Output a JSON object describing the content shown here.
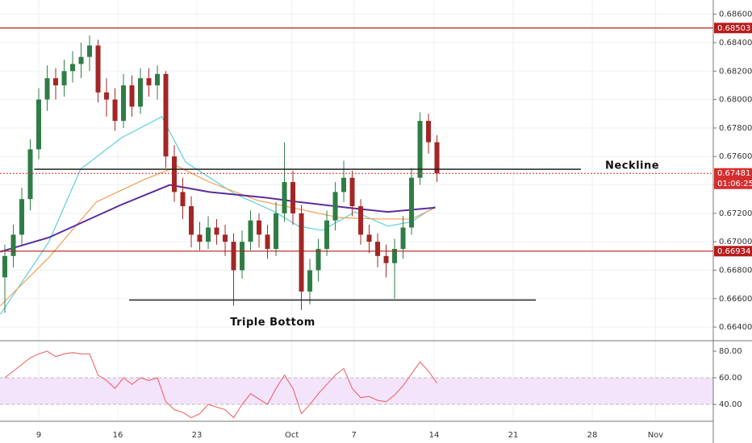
{
  "chart_data": [
    {
      "type": "candlestick",
      "x": [
        5,
        5.75,
        6.5,
        7.25,
        8,
        8.75,
        9.5,
        10.25,
        11,
        11.75,
        12.5,
        13.25,
        14,
        14.75,
        15.5,
        16.25,
        17,
        17.75,
        18.5,
        19.25,
        20,
        20.75,
        21.5,
        22.25,
        23,
        23.75,
        24.5,
        25.25,
        26,
        26.75,
        27.5,
        28.25,
        29,
        29.75,
        30.5,
        31.25,
        32,
        32.75,
        33.5,
        34.25,
        35,
        35.75,
        36.5,
        37.25,
        38,
        38.75,
        39.5,
        40.25,
        41,
        41.75,
        42.5,
        43.25
      ],
      "open": [
        0.6675,
        0.669,
        0.6705,
        0.673,
        0.6765,
        0.68,
        0.6815,
        0.681,
        0.682,
        0.6825,
        0.683,
        0.6838,
        0.6805,
        0.68,
        0.6785,
        0.681,
        0.6795,
        0.6815,
        0.681,
        0.6818,
        0.676,
        0.6735,
        0.6725,
        0.6705,
        0.67,
        0.671,
        0.6705,
        0.67,
        0.668,
        0.67,
        0.6715,
        0.6705,
        0.6695,
        0.672,
        0.6742,
        0.672,
        0.6665,
        0.668,
        0.6695,
        0.6715,
        0.6735,
        0.6745,
        0.6725,
        0.6705,
        0.67,
        0.669,
        0.6685,
        0.6695,
        0.671,
        0.6745,
        0.6785,
        0.677
      ],
      "high": [
        0.6698,
        0.6712,
        0.6738,
        0.6772,
        0.6808,
        0.6824,
        0.6822,
        0.6828,
        0.6834,
        0.684,
        0.6845,
        0.6842,
        0.6815,
        0.6808,
        0.6818,
        0.6817,
        0.6822,
        0.6822,
        0.6824,
        0.682,
        0.6768,
        0.6745,
        0.6732,
        0.6714,
        0.6718,
        0.6716,
        0.6712,
        0.6706,
        0.6708,
        0.6722,
        0.672,
        0.6712,
        0.6728,
        0.677,
        0.675,
        0.6726,
        0.6688,
        0.6702,
        0.6722,
        0.6742,
        0.6757,
        0.675,
        0.673,
        0.6712,
        0.6706,
        0.6698,
        0.6702,
        0.6718,
        0.6752,
        0.6791,
        0.679,
        0.6775
      ],
      "low": [
        0.665,
        0.6682,
        0.6698,
        0.6722,
        0.6758,
        0.6792,
        0.68,
        0.6802,
        0.6812,
        0.6815,
        0.682,
        0.6798,
        0.6788,
        0.6778,
        0.678,
        0.6788,
        0.679,
        0.6802,
        0.68,
        0.6752,
        0.6728,
        0.6716,
        0.6696,
        0.6694,
        0.6695,
        0.6698,
        0.669,
        0.6655,
        0.6674,
        0.6694,
        0.6696,
        0.6688,
        0.669,
        0.6714,
        0.6712,
        0.6652,
        0.6656,
        0.6672,
        0.669,
        0.6708,
        0.6728,
        0.6718,
        0.6698,
        0.6692,
        0.6682,
        0.6675,
        0.666,
        0.6688,
        0.6705,
        0.674,
        0.6762,
        0.6742
      ],
      "close": [
        0.669,
        0.6705,
        0.673,
        0.6765,
        0.68,
        0.6815,
        0.681,
        0.682,
        0.6825,
        0.683,
        0.6838,
        0.6805,
        0.68,
        0.6785,
        0.681,
        0.6795,
        0.6815,
        0.681,
        0.6818,
        0.676,
        0.6735,
        0.6725,
        0.6705,
        0.67,
        0.671,
        0.6705,
        0.67,
        0.668,
        0.67,
        0.6715,
        0.6705,
        0.6695,
        0.672,
        0.6742,
        0.672,
        0.6665,
        0.668,
        0.6695,
        0.6715,
        0.6735,
        0.6745,
        0.6725,
        0.6705,
        0.67,
        0.669,
        0.6685,
        0.6695,
        0.671,
        0.6745,
        0.6785,
        0.677,
        0.6748
      ],
      "up_color": "#2f7d46",
      "down_color": "#a32626",
      "xlim": [
        4.57,
        67.71
      ],
      "xticks": [
        {
          "value": 8,
          "label": "9"
        },
        {
          "value": 15,
          "label": "16"
        },
        {
          "value": 22,
          "label": "23"
        },
        {
          "value": 30.4,
          "label": "Oct"
        },
        {
          "value": 35.9,
          "label": "7"
        },
        {
          "value": 43,
          "label": "14"
        },
        {
          "value": 50,
          "label": "21"
        },
        {
          "value": 57,
          "label": "28"
        },
        {
          "value": 62.6,
          "label": "Nov"
        }
      ],
      "ylim": [
        0.6631,
        0.687
      ],
      "yticks": [
        {
          "value": 0.686,
          "label": "0.68600"
        },
        {
          "value": 0.684,
          "label": "0.68400"
        },
        {
          "value": 0.682,
          "label": "0.68200"
        },
        {
          "value": 0.68,
          "label": "0.68000"
        },
        {
          "value": 0.678,
          "label": "0.67800"
        },
        {
          "value": 0.676,
          "label": "0.67600"
        },
        {
          "value": 0.674,
          "label": "0.67400"
        },
        {
          "value": 0.672,
          "label": "0.67200"
        },
        {
          "value": 0.67,
          "label": "0.67000"
        },
        {
          "value": 0.668,
          "label": "0.66800"
        },
        {
          "value": 0.666,
          "label": "0.66600"
        },
        {
          "value": 0.664,
          "label": "0.66400"
        }
      ],
      "grid": true,
      "lines": [
        {
          "color": "#5fd0dc",
          "x": [
            4.6,
            8.9,
            11.7,
            15.3,
            18.9,
            21,
            25.3,
            28.9,
            31,
            33.1,
            36,
            38.9,
            41,
            43.1
          ],
          "values": [
            0.6649,
            0.67,
            0.6751,
            0.6773,
            0.6788,
            0.6756,
            0.6734,
            0.6721,
            0.6711,
            0.6708,
            0.6721,
            0.6711,
            0.6714,
            0.6725
          ]
        },
        {
          "color": "#f0a050",
          "x": [
            4.6,
            8.9,
            13.1,
            17.4,
            20.3,
            23.1,
            27.4,
            31,
            34.6,
            38.1,
            41,
            43.1
          ],
          "values": [
            0.6655,
            0.6689,
            0.6728,
            0.6744,
            0.6753,
            0.6742,
            0.6729,
            0.6723,
            0.6717,
            0.6716,
            0.6716,
            0.6724
          ]
        },
        {
          "color": "#5b2c9e",
          "x": [
            4.6,
            8.9,
            15.3,
            19.6,
            23.1,
            28.1,
            31,
            35.3,
            38.9,
            43.1
          ],
          "values": [
            0.6693,
            0.6703,
            0.6726,
            0.674,
            0.6735,
            0.6731,
            0.6728,
            0.6724,
            0.6721,
            0.6724
          ]
        }
      ],
      "levels": [
        {
          "value": 0.68503,
          "label": "0.68503",
          "color": "#b71c1c",
          "style": "solid"
        },
        {
          "value": 0.66934,
          "label": "0.66934",
          "color": "#b71c1c",
          "style": "solid"
        },
        {
          "value": 0.67481,
          "label": "0.67481",
          "timer": "01:06:25",
          "color": "#d32f2f",
          "style": "dotted"
        }
      ],
      "trendlines": [
        {
          "text": "Neckline",
          "value": 0.6751,
          "x": [
            7.6,
            56
          ]
        },
        {
          "text": "Triple Bottom",
          "value": 0.6659,
          "x": [
            16,
            52
          ]
        }
      ]
    },
    {
      "type": "line",
      "x": [
        5,
        5.75,
        6.5,
        7.25,
        8,
        8.75,
        9.5,
        10.25,
        11,
        11.75,
        12.5,
        13.25,
        14,
        14.75,
        15.5,
        16.25,
        17,
        17.75,
        18.5,
        19.25,
        20,
        20.75,
        21.5,
        22.25,
        23,
        23.75,
        24.5,
        25.25,
        26,
        26.75,
        27.5,
        28.25,
        29,
        29.75,
        30.5,
        31.25,
        32,
        32.75,
        33.5,
        34.25,
        35,
        35.75,
        36.5,
        37.25,
        38,
        38.75,
        39.5,
        40.25,
        41,
        41.75,
        42.5,
        43.25
      ],
      "values": [
        60,
        65,
        70,
        75,
        78,
        80,
        76,
        78,
        79,
        78,
        78,
        62,
        58,
        52,
        60,
        55,
        60,
        58,
        60,
        42,
        36,
        34,
        30,
        33,
        40,
        38,
        36,
        30,
        40,
        48,
        44,
        40,
        52,
        62,
        52,
        33,
        40,
        48,
        55,
        62,
        67,
        52,
        45,
        46,
        43,
        42,
        47,
        54,
        63,
        72,
        65,
        56
      ],
      "color": "#ef5b5b",
      "ylim": [
        27.9,
        87.3
      ],
      "yticks": [
        {
          "value": 80,
          "label": "80.00"
        },
        {
          "value": 60,
          "label": "60.00"
        },
        {
          "value": 40,
          "label": "40.00"
        }
      ],
      "band": [
        40,
        60
      ],
      "band_color": "#f3e3fb"
    }
  ]
}
